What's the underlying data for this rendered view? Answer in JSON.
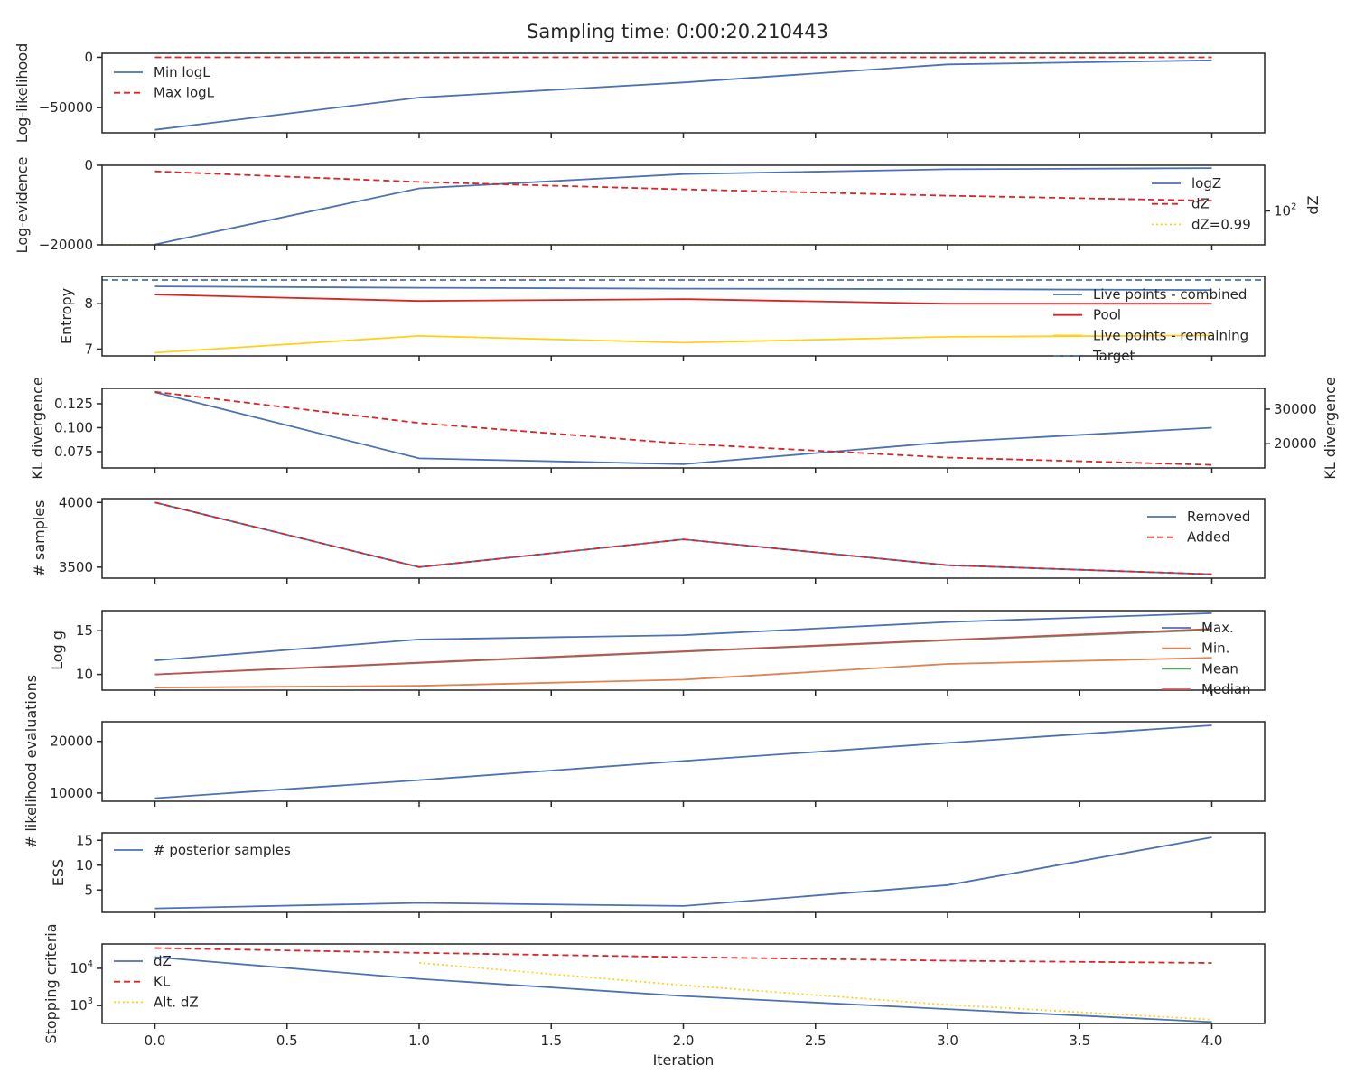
{
  "title": "Sampling time: 0:00:20.210443",
  "colors": {
    "blue": "#4c72b0",
    "red": "#d62728",
    "yellow": "#ffd11a",
    "orange": "#dd8452",
    "green": "#55a868",
    "median_red": "#c44e52",
    "brown": "#8c564b"
  },
  "chart_data": [
    {
      "id": "loglik",
      "type": "line",
      "ylabel": "Log-likelihood",
      "x": [
        0,
        1,
        2,
        3,
        4
      ],
      "ylim": [
        -75000,
        4000
      ],
      "yticks": [
        0,
        -50000
      ],
      "ytick_labels": [
        "0",
        "−50000"
      ],
      "series": [
        {
          "name": "Min logL",
          "y": [
            -72000,
            -40000,
            -25000,
            -7000,
            -3000
          ],
          "color": "blue",
          "dash": "solid"
        },
        {
          "name": "Max logL",
          "y": [
            0,
            0,
            0,
            0,
            0
          ],
          "color": "red",
          "dash": "dashed"
        }
      ],
      "legend": "upper left"
    },
    {
      "id": "logev",
      "type": "line",
      "ylabel": "Log-evidence",
      "y2label": "dZ",
      "x": [
        0,
        1,
        2,
        3,
        4
      ],
      "ylim": [
        -20000,
        0
      ],
      "yticks": [
        0,
        -20000
      ],
      "ytick_labels": [
        "0",
        "−20000"
      ],
      "y2_scale": "log",
      "y2lim": [
        0.988,
        50000
      ],
      "y2ticks": [
        100
      ],
      "y2tick_labels": [
        "10^2"
      ],
      "series": [
        {
          "name": "logZ",
          "axis": "left",
          "y": [
            -19900,
            -5800,
            -2200,
            -1000,
            -700
          ],
          "color": "blue",
          "dash": "solid"
        },
        {
          "name": "dZ",
          "axis": "right",
          "y": [
            22000,
            5200,
            1900,
            800,
            400
          ],
          "color": "red",
          "dash": "dashed"
        },
        {
          "name": "dZ=0.99",
          "axis": "right",
          "hline": 0.99,
          "color": "yellow",
          "dash": "dotted"
        }
      ],
      "legend": "right"
    },
    {
      "id": "entropy",
      "type": "line",
      "ylabel": "Entropy",
      "x": [
        0,
        1,
        2,
        3,
        4
      ],
      "ylim": [
        6.85,
        8.6
      ],
      "yticks": [
        8,
        7
      ],
      "ytick_labels": [
        "8",
        "7"
      ],
      "series": [
        {
          "name": "Live points - combined",
          "y": [
            8.38,
            8.35,
            8.33,
            8.32,
            8.3
          ],
          "color": "blue",
          "dash": "solid"
        },
        {
          "name": "Pool",
          "y": [
            8.2,
            8.06,
            8.1,
            8.0,
            8.0
          ],
          "color": "red",
          "dash": "solid"
        },
        {
          "name": "Live points - remaining",
          "y": [
            6.92,
            7.29,
            7.14,
            7.27,
            7.3
          ],
          "color": "yellow",
          "dash": "solid"
        },
        {
          "name": "Target",
          "hline": 8.52,
          "color": "blue",
          "dash": "dashed"
        }
      ],
      "legend": "lower right"
    },
    {
      "id": "kl",
      "type": "line",
      "ylabel": "KL divergence",
      "y2label": "KL divergence",
      "x": [
        0,
        1,
        2,
        3,
        4
      ],
      "ylim": [
        0.058,
        0.141
      ],
      "yticks": [
        0.125,
        0.1,
        0.075
      ],
      "ytick_labels": [
        "0.125",
        "0.100",
        "0.075"
      ],
      "y2lim": [
        13000,
        36000
      ],
      "y2ticks": [
        30000,
        20000
      ],
      "y2tick_labels": [
        "30000",
        "20000"
      ],
      "series": [
        {
          "axis": "left",
          "y": [
            0.137,
            0.068,
            0.062,
            0.085,
            0.1
          ],
          "color": "blue",
          "dash": "solid"
        },
        {
          "axis": "right",
          "y": [
            35000,
            26000,
            20000,
            16000,
            13900
          ],
          "color": "red",
          "dash": "dashed"
        }
      ]
    },
    {
      "id": "nsamples",
      "type": "line",
      "ylabel": "# samples",
      "x": [
        0,
        1,
        2,
        3,
        4
      ],
      "ylim": [
        3415,
        4030
      ],
      "yticks": [
        4000,
        3500
      ],
      "ytick_labels": [
        "4000",
        "3500"
      ],
      "series": [
        {
          "name": "Removed",
          "y": [
            4000,
            3500,
            3715,
            3515,
            3445
          ],
          "color": "blue",
          "dash": "solid"
        },
        {
          "name": "Added",
          "y": [
            4000,
            3500,
            3715,
            3515,
            3445
          ],
          "color": "red",
          "dash": "dashed"
        }
      ],
      "legend": "upper right"
    },
    {
      "id": "logg",
      "type": "line",
      "ylabel": "Log g",
      "x": [
        0,
        1,
        2,
        3,
        4
      ],
      "ylim": [
        8.2,
        17.3
      ],
      "yticks": [
        15,
        10
      ],
      "ytick_labels": [
        "15",
        "10"
      ],
      "series": [
        {
          "name": "Max.",
          "y": [
            11.6,
            14.0,
            14.5,
            16.0,
            17.0
          ],
          "color": "blue",
          "dash": "solid"
        },
        {
          "name": "Min.",
          "y": [
            8.5,
            8.7,
            9.4,
            11.2,
            11.9
          ],
          "color": "orange",
          "dash": "solid"
        },
        {
          "name": "Mean",
          "y": [
            10.0,
            11.3,
            12.6,
            13.9,
            15.1
          ],
          "color": "green",
          "dash": "solid"
        },
        {
          "name": "Median",
          "y": [
            10.0,
            11.35,
            12.65,
            13.95,
            15.2
          ],
          "color": "median_red",
          "dash": "solid"
        }
      ],
      "legend": "lower right"
    },
    {
      "id": "likeval",
      "type": "line",
      "ylabel": "# likelihood evaluations",
      "x": [
        0,
        1,
        2,
        3,
        4
      ],
      "ylim": [
        8400,
        23800
      ],
      "yticks": [
        20000,
        10000
      ],
      "ytick_labels": [
        "20000",
        "10000"
      ],
      "series": [
        {
          "y": [
            9000,
            12500,
            16200,
            19700,
            23100
          ],
          "color": "blue",
          "dash": "solid"
        }
      ]
    },
    {
      "id": "ess",
      "type": "line",
      "ylabel": "ESS",
      "x": [
        0,
        1,
        2,
        3,
        4
      ],
      "ylim": [
        0.5,
        16.5
      ],
      "yticks": [
        15,
        10,
        5
      ],
      "ytick_labels": [
        "15",
        "10",
        "5"
      ],
      "series": [
        {
          "name": "# posterior samples",
          "y": [
            1.3,
            2.4,
            1.8,
            6.0,
            15.6
          ],
          "color": "blue",
          "dash": "solid"
        }
      ],
      "legend": "upper left"
    },
    {
      "id": "stop",
      "type": "line",
      "ylabel": "Stopping criteria",
      "xlabel": "Iteration",
      "x": [
        0,
        1,
        2,
        3,
        4
      ],
      "y_scale": "log",
      "ylim": [
        330,
        45000
      ],
      "yticks": [
        10000,
        1000
      ],
      "ytick_labels": [
        "10^4",
        "10^3"
      ],
      "xticks": [
        0,
        0.5,
        1,
        1.5,
        2,
        2.5,
        3,
        3.5,
        4
      ],
      "xtick_labels": [
        "0.0",
        "0.5",
        "1.0",
        "1.5",
        "2.0",
        "2.5",
        "3.0",
        "3.5",
        "4.0"
      ],
      "series": [
        {
          "name": "dZ",
          "x": [
            0,
            1,
            2,
            3,
            4
          ],
          "y": [
            20000,
            5200,
            1800,
            800,
            360
          ],
          "color": "blue",
          "dash": "solid"
        },
        {
          "name": "KL",
          "x": [
            0,
            1,
            2,
            3,
            4
          ],
          "y": [
            35000,
            26000,
            20000,
            16000,
            13900
          ],
          "color": "red",
          "dash": "dashed"
        },
        {
          "name": "Alt. dZ",
          "x": [
            1,
            2,
            3,
            4
          ],
          "y": [
            14000,
            3500,
            1050,
            420
          ],
          "color": "yellow",
          "dash": "dotted"
        }
      ],
      "legend": "upper left"
    }
  ]
}
